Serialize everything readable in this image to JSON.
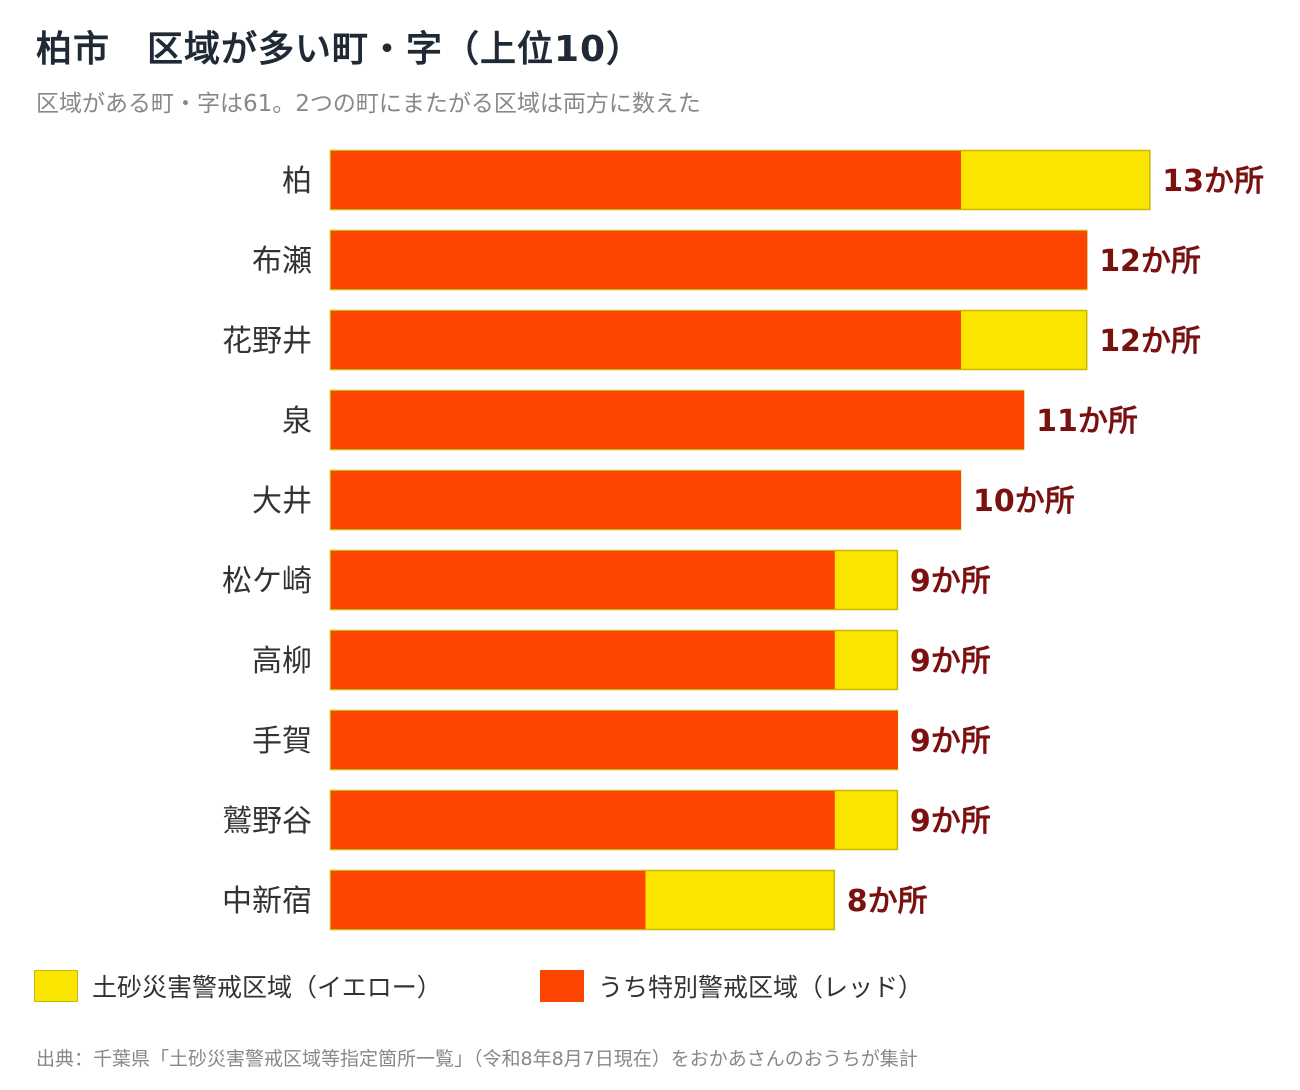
{
  "title": "柏市　区域が多い町・字（上位10）",
  "subtitle": "区域がある町・字は61。2つの町にまたがる区域は両方に数えた",
  "source": "出典：千葉県「土砂災害警戒区域等指定箇所一覧」（令和8年8月7日現在）をおかあさんのおうちが集計",
  "legend": {
    "yellow_label": "土砂災害警戒区域（イエロー）",
    "red_label": "うち特別警戒区域（レッド）"
  },
  "colors": {
    "red": "#fc4600",
    "yellow": "#fae500",
    "yellow_border": "#c8b800",
    "value_label": "#7a1010",
    "category_label": "#333333"
  },
  "chart_data": {
    "type": "bar",
    "orientation": "horizontal",
    "stacked": true,
    "categories": [
      "柏",
      "布瀬",
      "花野井",
      "泉",
      "大井",
      "松ケ崎",
      "高柳",
      "手賀",
      "鷲野谷",
      "中新宿"
    ],
    "series": [
      {
        "name": "うち特別警戒区域（レッド）",
        "values": [
          10,
          12,
          10,
          11,
          10,
          8,
          8,
          9,
          8,
          5
        ]
      },
      {
        "name": "土砂災害警戒区域（イエロー）",
        "values": [
          3,
          0,
          2,
          0,
          0,
          1,
          1,
          0,
          1,
          3
        ]
      }
    ],
    "totals": [
      13,
      12,
      12,
      11,
      10,
      9,
      9,
      9,
      9,
      8
    ],
    "value_labels": [
      "13か所",
      "12か所",
      "12か所",
      "11か所",
      "10か所",
      "9か所",
      "9か所",
      "9か所",
      "9か所",
      "8か所"
    ],
    "xlim": [
      0,
      13
    ],
    "grid": false,
    "legend_position": "bottom"
  }
}
